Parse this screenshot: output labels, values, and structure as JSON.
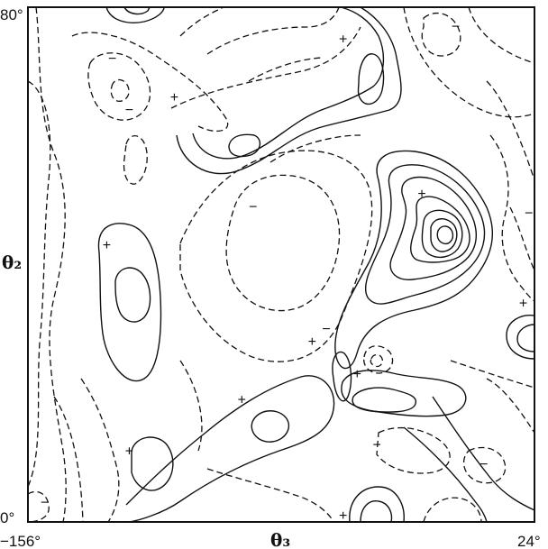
{
  "chart_data": {
    "type": "contour",
    "x_axis": {
      "label": "θ₃",
      "tick_labels": [
        "−156°",
        "24°"
      ],
      "range": [
        -156,
        24
      ]
    },
    "y_axis": {
      "label": "θ₂",
      "tick_labels": [
        "0°",
        "80°"
      ],
      "range": [
        0,
        80
      ]
    },
    "contour_styles": {
      "positive": "solid",
      "negative": "dashed"
    },
    "markers": [
      {
        "sign": "+",
        "x": -128,
        "y": 43
      },
      {
        "sign": "+",
        "x": -120,
        "y": 11
      },
      {
        "sign": "+",
        "x": -104,
        "y": 66
      },
      {
        "sign": "+",
        "x": -80,
        "y": 19
      },
      {
        "sign": "+",
        "x": -44,
        "y": 75
      },
      {
        "sign": "+",
        "x": -44,
        "y": 1
      },
      {
        "sign": "+",
        "x": -55,
        "y": 28
      },
      {
        "sign": "+",
        "x": -39,
        "y": 23
      },
      {
        "sign": "+",
        "x": -16,
        "y": 51
      },
      {
        "sign": "+",
        "x": 20,
        "y": 34
      },
      {
        "sign": "−",
        "x": -76,
        "y": 49
      },
      {
        "sign": "−",
        "x": -126,
        "y": 72
      },
      {
        "sign": "−",
        "x": -120,
        "y": 64
      },
      {
        "sign": "−",
        "x": -50,
        "y": 30
      },
      {
        "sign": "−",
        "x": -4,
        "y": 77
      },
      {
        "sign": "−",
        "x": 22,
        "y": 48
      },
      {
        "sign": "−",
        "x": -32,
        "y": 12
      },
      {
        "sign": "−",
        "x": 6,
        "y": 9
      },
      {
        "sign": "−",
        "x": -150,
        "y": 3
      }
    ]
  }
}
